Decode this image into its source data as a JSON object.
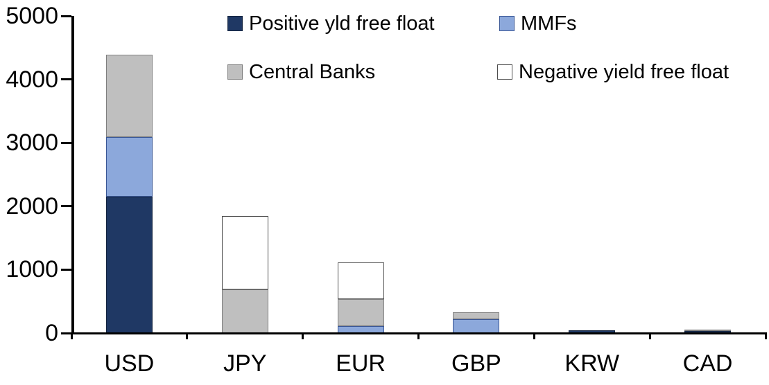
{
  "chart_data": {
    "type": "bar",
    "stacked": true,
    "title": "",
    "xlabel": "",
    "ylabel": "",
    "categories": [
      "USD",
      "JPY",
      "EUR",
      "GBP",
      "KRW",
      "CAD"
    ],
    "series": [
      {
        "name": "Positive yld free float",
        "color": "#1F3864",
        "border_color": "#14243F",
        "values": [
          2150,
          0,
          0,
          0,
          40,
          30
        ]
      },
      {
        "name": "MMFs",
        "color": "#8CA8DB",
        "border_color": "#3A5795",
        "values": [
          940,
          0,
          110,
          220,
          0,
          0
        ]
      },
      {
        "name": "Central Banks",
        "color": "#BFBFBF",
        "border_color": "#7F7F7F",
        "values": [
          1300,
          690,
          420,
          110,
          0,
          28
        ]
      },
      {
        "name": "Negative yield free float",
        "color": "#FFFFFF",
        "border_color": "#4D4D4D",
        "values": [
          0,
          1150,
          580,
          0,
          0,
          0
        ]
      }
    ],
    "stack_order_bottom_to_top": [
      "Positive yld free float",
      "MMFs",
      "Central Banks",
      "Negative yield free float"
    ],
    "totals": [
      4390,
      1840,
      1110,
      330,
      40,
      58
    ],
    "ylim": [
      0,
      5000
    ],
    "ytick_step": 1000,
    "ytick_labels": [
      "0",
      "1000",
      "2000",
      "3000",
      "4000",
      "5000"
    ],
    "grid": false,
    "legend_position": "top",
    "legend_rows": [
      [
        "Positive yld free float",
        "MMFs"
      ],
      [
        "Central Banks",
        "Negative yield free float"
      ]
    ],
    "axis_color": "#000000",
    "background_color": "#FFFFFF"
  }
}
